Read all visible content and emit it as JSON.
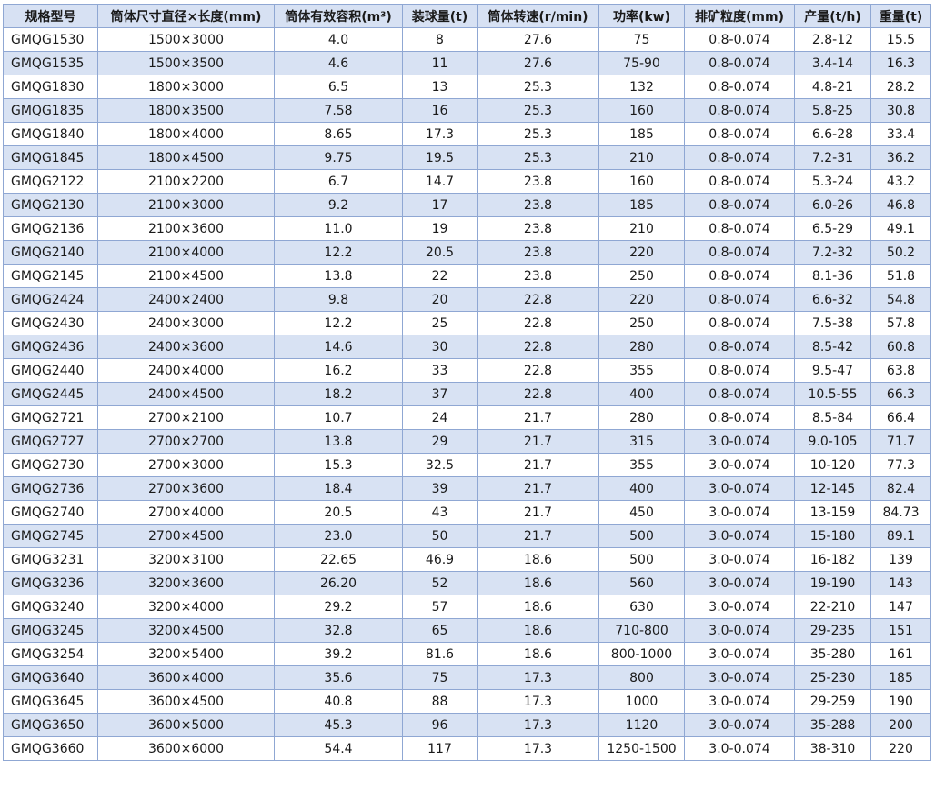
{
  "table": {
    "headers": [
      "规格型号",
      "筒体尺寸直径×长度(mm)",
      "筒体有效容积(m³)",
      "装球量(t)",
      "筒体转速(r/min)",
      "功率(kw)",
      "排矿粒度(mm)",
      "产量(t/h)",
      "重量(t)"
    ],
    "rows": [
      [
        "GMQG1530",
        "1500×3000",
        "4.0",
        "8",
        "27.6",
        "75",
        "0.8-0.074",
        "2.8-12",
        "15.5"
      ],
      [
        "GMQG1535",
        "1500×3500",
        "4.6",
        "11",
        "27.6",
        "75-90",
        "0.8-0.074",
        "3.4-14",
        "16.3"
      ],
      [
        "GMQG1830",
        "1800×3000",
        "6.5",
        "13",
        "25.3",
        "132",
        "0.8-0.074",
        "4.8-21",
        "28.2"
      ],
      [
        "GMQG1835",
        "1800×3500",
        "7.58",
        "16",
        "25.3",
        "160",
        "0.8-0.074",
        "5.8-25",
        "30.8"
      ],
      [
        "GMQG1840",
        "1800×4000",
        "8.65",
        "17.3",
        "25.3",
        "185",
        "0.8-0.074",
        "6.6-28",
        "33.4"
      ],
      [
        "GMQG1845",
        "1800×4500",
        "9.75",
        "19.5",
        "25.3",
        "210",
        "0.8-0.074",
        "7.2-31",
        "36.2"
      ],
      [
        "GMQG2122",
        "2100×2200",
        "6.7",
        "14.7",
        "23.8",
        "160",
        "0.8-0.074",
        "5.3-24",
        "43.2"
      ],
      [
        "GMQG2130",
        "2100×3000",
        "9.2",
        "17",
        "23.8",
        "185",
        "0.8-0.074",
        "6.0-26",
        "46.8"
      ],
      [
        "GMQG2136",
        "2100×3600",
        "11.0",
        "19",
        "23.8",
        "210",
        "0.8-0.074",
        "6.5-29",
        "49.1"
      ],
      [
        "GMQG2140",
        "2100×4000",
        "12.2",
        "20.5",
        "23.8",
        "220",
        "0.8-0.074",
        "7.2-32",
        "50.2"
      ],
      [
        "GMQG2145",
        "2100×4500",
        "13.8",
        "22",
        "23.8",
        "250",
        "0.8-0.074",
        "8.1-36",
        "51.8"
      ],
      [
        "GMQG2424",
        "2400×2400",
        "9.8",
        "20",
        "22.8",
        "220",
        "0.8-0.074",
        "6.6-32",
        "54.8"
      ],
      [
        "GMQG2430",
        "2400×3000",
        "12.2",
        "25",
        "22.8",
        "250",
        "0.8-0.074",
        "7.5-38",
        "57.8"
      ],
      [
        "GMQG2436",
        "2400×3600",
        "14.6",
        "30",
        "22.8",
        "280",
        "0.8-0.074",
        "8.5-42",
        "60.8"
      ],
      [
        "GMQG2440",
        "2400×4000",
        "16.2",
        "33",
        "22.8",
        "355",
        "0.8-0.074",
        "9.5-47",
        "63.8"
      ],
      [
        "GMQG2445",
        "2400×4500",
        "18.2",
        "37",
        "22.8",
        "400",
        "0.8-0.074",
        "10.5-55",
        "66.3"
      ],
      [
        "GMQG2721",
        "2700×2100",
        "10.7",
        "24",
        "21.7",
        "280",
        "0.8-0.074",
        "8.5-84",
        "66.4"
      ],
      [
        "GMQG2727",
        "2700×2700",
        "13.8",
        "29",
        "21.7",
        "315",
        "3.0-0.074",
        "9.0-105",
        "71.7"
      ],
      [
        "GMQG2730",
        "2700×3000",
        "15.3",
        "32.5",
        "21.7",
        "355",
        "3.0-0.074",
        "10-120",
        "77.3"
      ],
      [
        "GMQG2736",
        "2700×3600",
        "18.4",
        "39",
        "21.7",
        "400",
        "3.0-0.074",
        "12-145",
        "82.4"
      ],
      [
        "GMQG2740",
        "2700×4000",
        "20.5",
        "43",
        "21.7",
        "450",
        "3.0-0.074",
        "13-159",
        "84.73"
      ],
      [
        "GMQG2745",
        "2700×4500",
        "23.0",
        "50",
        "21.7",
        "500",
        "3.0-0.074",
        "15-180",
        "89.1"
      ],
      [
        "GMQG3231",
        "3200×3100",
        "22.65",
        "46.9",
        "18.6",
        "500",
        "3.0-0.074",
        "16-182",
        "139"
      ],
      [
        "GMQG3236",
        "3200×3600",
        "26.20",
        "52",
        "18.6",
        "560",
        "3.0-0.074",
        "19-190",
        "143"
      ],
      [
        "GMQG3240",
        "3200×4000",
        "29.2",
        "57",
        "18.6",
        "630",
        "3.0-0.074",
        "22-210",
        "147"
      ],
      [
        "GMQG3245",
        "3200×4500",
        "32.8",
        "65",
        "18.6",
        "710-800",
        "3.0-0.074",
        "29-235",
        "151"
      ],
      [
        "GMQG3254",
        "3200×5400",
        "39.2",
        "81.6",
        "18.6",
        "800-1000",
        "3.0-0.074",
        "35-280",
        "161"
      ],
      [
        "GMQG3640",
        "3600×4000",
        "35.6",
        "75",
        "17.3",
        "800",
        "3.0-0.074",
        "25-230",
        "185"
      ],
      [
        "GMQG3645",
        "3600×4500",
        "40.8",
        "88",
        "17.3",
        "1000",
        "3.0-0.074",
        "29-259",
        "190"
      ],
      [
        "GMQG3650",
        "3600×5000",
        "45.3",
        "96",
        "17.3",
        "1120",
        "3.0-0.074",
        "35-288",
        "200"
      ],
      [
        "GMQG3660",
        "3600×6000",
        "54.4",
        "117",
        "17.3",
        "1250-1500",
        "3.0-0.074",
        "38-310",
        "220"
      ]
    ]
  },
  "colors": {
    "border": "#8fa7d3",
    "header_bg": "#d7e1f3",
    "stripe_bg": "#d8e2f3",
    "row_bg": "#ffffff",
    "text": "#1a1a1a"
  }
}
